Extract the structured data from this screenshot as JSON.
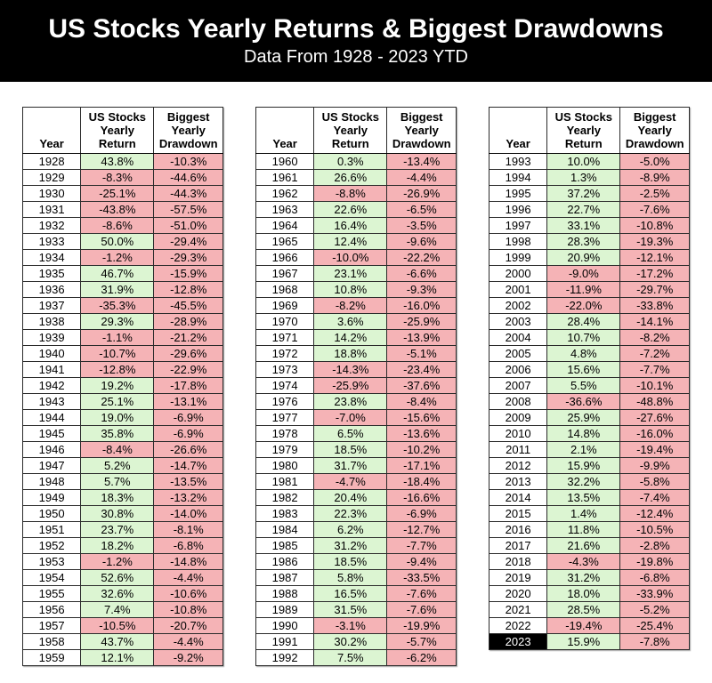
{
  "banner": {
    "title": "US Stocks Yearly Returns & Biggest Drawdowns",
    "subtitle": "Data From 1928 - 2023 YTD"
  },
  "colors": {
    "positive_bg": "#dcf5d2",
    "negative_bg": "#f5b3b6",
    "banner_bg": "#000000",
    "banner_fg": "#ffffff",
    "highlight_bg": "#000000",
    "highlight_fg": "#ffffff"
  },
  "chart_data": {
    "type": "table",
    "title": "US Stocks Yearly Returns & Biggest Drawdowns",
    "subtitle": "Data From 1928 - 2023 YTD",
    "columns": [
      "Year",
      "US Stocks Yearly Return",
      "Biggest Yearly Drawdown"
    ],
    "column_headers_multiline": [
      "Year",
      "US Stocks\nYearly\nReturn",
      "Biggest\nYearly\nDrawdown"
    ],
    "highlight_year": "2023",
    "tables": [
      {
        "rows": [
          [
            "1928",
            "43.8%",
            "-10.3%"
          ],
          [
            "1929",
            "-8.3%",
            "-44.6%"
          ],
          [
            "1930",
            "-25.1%",
            "-44.3%"
          ],
          [
            "1931",
            "-43.8%",
            "-57.5%"
          ],
          [
            "1932",
            "-8.6%",
            "-51.0%"
          ],
          [
            "1933",
            "50.0%",
            "-29.4%"
          ],
          [
            "1934",
            "-1.2%",
            "-29.3%"
          ],
          [
            "1935",
            "46.7%",
            "-15.9%"
          ],
          [
            "1936",
            "31.9%",
            "-12.8%"
          ],
          [
            "1937",
            "-35.3%",
            "-45.5%"
          ],
          [
            "1938",
            "29.3%",
            "-28.9%"
          ],
          [
            "1939",
            "-1.1%",
            "-21.2%"
          ],
          [
            "1940",
            "-10.7%",
            "-29.6%"
          ],
          [
            "1941",
            "-12.8%",
            "-22.9%"
          ],
          [
            "1942",
            "19.2%",
            "-17.8%"
          ],
          [
            "1943",
            "25.1%",
            "-13.1%"
          ],
          [
            "1944",
            "19.0%",
            "-6.9%"
          ],
          [
            "1945",
            "35.8%",
            "-6.9%"
          ],
          [
            "1946",
            "-8.4%",
            "-26.6%"
          ],
          [
            "1947",
            "5.2%",
            "-14.7%"
          ],
          [
            "1948",
            "5.7%",
            "-13.5%"
          ],
          [
            "1949",
            "18.3%",
            "-13.2%"
          ],
          [
            "1950",
            "30.8%",
            "-14.0%"
          ],
          [
            "1951",
            "23.7%",
            "-8.1%"
          ],
          [
            "1952",
            "18.2%",
            "-6.8%"
          ],
          [
            "1953",
            "-1.2%",
            "-14.8%"
          ],
          [
            "1954",
            "52.6%",
            "-4.4%"
          ],
          [
            "1955",
            "32.6%",
            "-10.6%"
          ],
          [
            "1956",
            "7.4%",
            "-10.8%"
          ],
          [
            "1957",
            "-10.5%",
            "-20.7%"
          ],
          [
            "1958",
            "43.7%",
            "-4.4%"
          ],
          [
            "1959",
            "12.1%",
            "-9.2%"
          ]
        ]
      },
      {
        "rows": [
          [
            "1960",
            "0.3%",
            "-13.4%"
          ],
          [
            "1961",
            "26.6%",
            "-4.4%"
          ],
          [
            "1962",
            "-8.8%",
            "-26.9%"
          ],
          [
            "1963",
            "22.6%",
            "-6.5%"
          ],
          [
            "1964",
            "16.4%",
            "-3.5%"
          ],
          [
            "1965",
            "12.4%",
            "-9.6%"
          ],
          [
            "1966",
            "-10.0%",
            "-22.2%"
          ],
          [
            "1967",
            "23.1%",
            "-6.6%"
          ],
          [
            "1968",
            "10.8%",
            "-9.3%"
          ],
          [
            "1969",
            "-8.2%",
            "-16.0%"
          ],
          [
            "1970",
            "3.6%",
            "-25.9%"
          ],
          [
            "1971",
            "14.2%",
            "-13.9%"
          ],
          [
            "1972",
            "18.8%",
            "-5.1%"
          ],
          [
            "1973",
            "-14.3%",
            "-23.4%"
          ],
          [
            "1974",
            "-25.9%",
            "-37.6%"
          ],
          [
            "1976",
            "23.8%",
            "-8.4%"
          ],
          [
            "1977",
            "-7.0%",
            "-15.6%"
          ],
          [
            "1978",
            "6.5%",
            "-13.6%"
          ],
          [
            "1979",
            "18.5%",
            "-10.2%"
          ],
          [
            "1980",
            "31.7%",
            "-17.1%"
          ],
          [
            "1981",
            "-4.7%",
            "-18.4%"
          ],
          [
            "1982",
            "20.4%",
            "-16.6%"
          ],
          [
            "1983",
            "22.3%",
            "-6.9%"
          ],
          [
            "1984",
            "6.2%",
            "-12.7%"
          ],
          [
            "1985",
            "31.2%",
            "-7.7%"
          ],
          [
            "1986",
            "18.5%",
            "-9.4%"
          ],
          [
            "1987",
            "5.8%",
            "-33.5%"
          ],
          [
            "1988",
            "16.5%",
            "-7.6%"
          ],
          [
            "1989",
            "31.5%",
            "-7.6%"
          ],
          [
            "1990",
            "-3.1%",
            "-19.9%"
          ],
          [
            "1991",
            "30.2%",
            "-5.7%"
          ],
          [
            "1992",
            "7.5%",
            "-6.2%"
          ]
        ]
      },
      {
        "rows": [
          [
            "1993",
            "10.0%",
            "-5.0%"
          ],
          [
            "1994",
            "1.3%",
            "-8.9%"
          ],
          [
            "1995",
            "37.2%",
            "-2.5%"
          ],
          [
            "1996",
            "22.7%",
            "-7.6%"
          ],
          [
            "1997",
            "33.1%",
            "-10.8%"
          ],
          [
            "1998",
            "28.3%",
            "-19.3%"
          ],
          [
            "1999",
            "20.9%",
            "-12.1%"
          ],
          [
            "2000",
            "-9.0%",
            "-17.2%"
          ],
          [
            "2001",
            "-11.9%",
            "-29.7%"
          ],
          [
            "2002",
            "-22.0%",
            "-33.8%"
          ],
          [
            "2003",
            "28.4%",
            "-14.1%"
          ],
          [
            "2004",
            "10.7%",
            "-8.2%"
          ],
          [
            "2005",
            "4.8%",
            "-7.2%"
          ],
          [
            "2006",
            "15.6%",
            "-7.7%"
          ],
          [
            "2007",
            "5.5%",
            "-10.1%"
          ],
          [
            "2008",
            "-36.6%",
            "-48.8%"
          ],
          [
            "2009",
            "25.9%",
            "-27.6%"
          ],
          [
            "2010",
            "14.8%",
            "-16.0%"
          ],
          [
            "2011",
            "2.1%",
            "-19.4%"
          ],
          [
            "2012",
            "15.9%",
            "-9.9%"
          ],
          [
            "2013",
            "32.2%",
            "-5.8%"
          ],
          [
            "2014",
            "13.5%",
            "-7.4%"
          ],
          [
            "2015",
            "1.4%",
            "-12.4%"
          ],
          [
            "2016",
            "11.8%",
            "-10.5%"
          ],
          [
            "2017",
            "21.6%",
            "-2.8%"
          ],
          [
            "2018",
            "-4.3%",
            "-19.8%"
          ],
          [
            "2019",
            "31.2%",
            "-6.8%"
          ],
          [
            "2020",
            "18.0%",
            "-33.9%"
          ],
          [
            "2021",
            "28.5%",
            "-5.2%"
          ],
          [
            "2022",
            "-19.4%",
            "-25.4%"
          ],
          [
            "2023",
            "15.9%",
            "-7.8%"
          ]
        ]
      }
    ]
  }
}
